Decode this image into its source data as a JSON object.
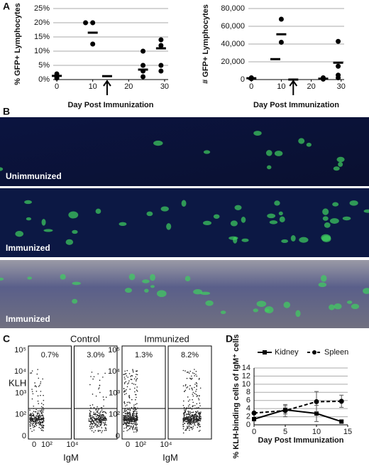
{
  "panels": {
    "labels": [
      "A",
      "B",
      "C",
      "D"
    ]
  },
  "chart_data": [
    {
      "type": "scatter",
      "ylabel": "% GFP+ Lymphocytes",
      "xlabel": "Day Post Immunization",
      "xlim": [
        -1,
        31
      ],
      "xticks": [
        0,
        10,
        20,
        30
      ],
      "ylim": [
        0,
        25
      ],
      "yticks": [
        {
          "value": 0,
          "label": "0%"
        },
        {
          "value": 5,
          "label": "5%"
        },
        {
          "value": 10,
          "label": "10%"
        },
        {
          "value": 15,
          "label": "15%"
        },
        {
          "value": 20,
          "label": "20%"
        },
        {
          "value": 25,
          "label": "25%"
        }
      ],
      "grid": true,
      "arrow_x": 14,
      "series": [
        {
          "marker": "dot",
          "color": "#000",
          "x": [
            0,
            0,
            0,
            8,
            10,
            10,
            24,
            24,
            24,
            24,
            29,
            29,
            29,
            29
          ],
          "values": [
            1,
            2,
            0.5,
            20,
            20,
            12.5,
            10,
            5,
            3,
            1,
            14,
            12,
            5,
            3
          ]
        },
        {
          "marker": "dash",
          "color": "#000",
          "x": [
            0,
            10,
            14,
            24,
            29
          ],
          "values": [
            1.3,
            16.5,
            1.2,
            3.5,
            11
          ]
        }
      ]
    },
    {
      "type": "scatter",
      "ylabel": "# GFP+ Lymphocytes",
      "xlabel": "Day Post Immunization",
      "xlim": [
        -1,
        31
      ],
      "xticks": [
        0,
        10,
        20,
        30
      ],
      "ylim": [
        0,
        80000
      ],
      "yticks": [
        0,
        {
          "value": 20000,
          "label": "20,000"
        },
        {
          "value": 40000,
          "label": "40,000"
        },
        {
          "value": 60000,
          "label": "60,000"
        },
        {
          "value": 80000,
          "label": "80,000"
        }
      ],
      "grid": true,
      "arrow_x": 14,
      "series": [
        {
          "marker": "dot",
          "color": "#000",
          "x": [
            0,
            0,
            10,
            10,
            24,
            24,
            29,
            29,
            29,
            29
          ],
          "values": [
            2000,
            1000,
            68000,
            42000,
            2000,
            500,
            43000,
            15000,
            5000,
            2000
          ]
        },
        {
          "marker": "dash",
          "color": "#000",
          "x": [
            0,
            8,
            10,
            14,
            24,
            29
          ],
          "values": [
            1500,
            23000,
            51000,
            0,
            1000,
            19000
          ]
        }
      ]
    },
    {
      "type": "line",
      "ylabel": "% KLH-binding cells of IgM⁺ cells",
      "xlabel": "Day Post Immunization",
      "xlim": [
        0,
        15
      ],
      "xticks": [
        0,
        5,
        10,
        15
      ],
      "ylim": [
        0,
        14
      ],
      "yticks": [
        0,
        2,
        4,
        6,
        8,
        10,
        12,
        14
      ],
      "grid": true,
      "series": [
        {
          "name": "Kidney",
          "color": "#000",
          "marker": "square",
          "dash": false,
          "x": [
            0,
            5,
            10,
            14
          ],
          "values": [
            1.4,
            3.7,
            2.8,
            0.8
          ],
          "errors": [
            0.3,
            1,
            2,
            0.3
          ]
        },
        {
          "name": "Spleen",
          "color": "#000",
          "marker": "circle",
          "dash": true,
          "x": [
            0,
            5,
            10,
            14
          ],
          "values": [
            2.9,
            3.5,
            5.7,
            5.8
          ],
          "errors": [
            0.3,
            1.5,
            2.5,
            1.5
          ]
        }
      ]
    }
  ],
  "images": {
    "labels": [
      "Unimmunized",
      "Immunized",
      "Immunized"
    ]
  },
  "flow": {
    "titles": [
      "Control",
      "Immunized"
    ],
    "gates": [
      "0.7%",
      "3.0%",
      "1.3%",
      "8.2%"
    ],
    "ylabel": "KLH",
    "xlabel": "IgM",
    "yticks": [
      "10⁵",
      "10⁴",
      "10³",
      "10²",
      "0"
    ],
    "xticks": [
      "0",
      "10²",
      "10⁴"
    ]
  }
}
